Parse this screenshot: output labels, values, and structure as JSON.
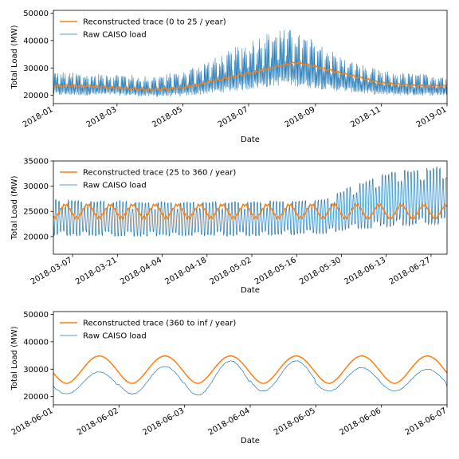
{
  "chart_data": [
    {
      "type": "line",
      "xlabel": "Date",
      "ylabel": "Total Load (MW)",
      "xlim": [
        "2018-01-01",
        "2019-01-01"
      ],
      "ylim": [
        17000,
        51000
      ],
      "yticks": [
        20000,
        30000,
        40000,
        50000
      ],
      "xticks": [
        "2018-01",
        "2018-03",
        "2018-05",
        "2018-07",
        "2018-09",
        "2018-11",
        "2019-01"
      ],
      "legend_position": "upper-left",
      "series": [
        {
          "name": "Reconstructed trace (0 to 25 / year)",
          "color": "#ff7f0e",
          "points": [
            [
              "2018-01-01",
              23500
            ],
            [
              "2018-02-01",
              23500
            ],
            [
              "2018-03-01",
              22800
            ],
            [
              "2018-04-01",
              22000
            ],
            [
              "2018-05-01",
              22800
            ],
            [
              "2018-06-01",
              25500
            ],
            [
              "2018-07-01",
              28000
            ],
            [
              "2018-08-01",
              31000
            ],
            [
              "2018-08-15",
              32000
            ],
            [
              "2018-09-01",
              30500
            ],
            [
              "2018-10-01",
              27500
            ],
            [
              "2018-11-01",
              24500
            ],
            [
              "2018-12-01",
              23500
            ],
            [
              "2019-01-01",
              23300
            ]
          ]
        },
        {
          "name": "Raw CAISO load",
          "color": "#1f77b4",
          "style": "dense daily-oscillating load trace",
          "envelope": [
            [
              "2018-01-01",
              19500,
              29000
            ],
            [
              "2018-02-01",
              19500,
              28000
            ],
            [
              "2018-03-01",
              19500,
              28000
            ],
            [
              "2018-04-01",
              19000,
              27000
            ],
            [
              "2018-05-01",
              19000,
              29000
            ],
            [
              "2018-06-01",
              20000,
              34000
            ],
            [
              "2018-07-01",
              21000,
              40000
            ],
            [
              "2018-08-01",
              22500,
              45500
            ],
            [
              "2018-09-01",
              21500,
              40000
            ],
            [
              "2018-10-01",
              20500,
              33000
            ],
            [
              "2018-11-01",
              19500,
              29000
            ],
            [
              "2018-12-01",
              19500,
              28000
            ],
            [
              "2019-01-01",
              19500,
              27500
            ]
          ]
        }
      ]
    },
    {
      "type": "line",
      "xlabel": "Date",
      "ylabel": "Total Load (MW)",
      "xlim": [
        "2018-03-01",
        "2018-07-02"
      ],
      "ylim": [
        16500,
        35000
      ],
      "yticks": [
        20000,
        25000,
        30000,
        35000
      ],
      "xticks": [
        "2018-03-07",
        "2018-03-21",
        "2018-04-04",
        "2018-04-18",
        "2018-05-02",
        "2018-05-16",
        "2018-05-30",
        "2018-06-13",
        "2018-06-27"
      ],
      "legend_position": "upper-left",
      "series": [
        {
          "name": "Reconstructed trace (25 to 360 / year)",
          "color": "#ff7f0e",
          "style": "weekly oscillation",
          "mean": 25000,
          "amplitude": 1300,
          "period_days": 7
        },
        {
          "name": "Raw CAISO load",
          "color": "#1f77b4",
          "style": "daily oscillation",
          "envelope": [
            [
              "2018-03-01",
              19500,
              28000
            ],
            [
              "2018-04-01",
              19500,
              27500
            ],
            [
              "2018-05-01",
              19500,
              27500
            ],
            [
              "2018-05-25",
              20000,
              28000
            ],
            [
              "2018-06-01",
              20500,
              30500
            ],
            [
              "2018-06-15",
              21000,
              34000
            ],
            [
              "2018-07-02",
              21500,
              35000
            ]
          ]
        }
      ]
    },
    {
      "type": "line",
      "xlabel": "Date",
      "ylabel": "Total Load (MW)",
      "xlim": [
        "2018-06-01",
        "2018-06-07"
      ],
      "ylim": [
        17000,
        51000
      ],
      "yticks": [
        20000,
        30000,
        40000,
        50000
      ],
      "xticks": [
        "2018-06-01",
        "2018-06-02",
        "2018-06-03",
        "2018-06-04",
        "2018-06-05",
        "2018-06-06",
        "2018-06-07"
      ],
      "legend_position": "upper-left",
      "series": [
        {
          "name": "Reconstructed trace (360 to inf / year)",
          "color": "#ff7f0e",
          "style": "daily cycle",
          "daily_min": 24800,
          "daily_max": 34800
        },
        {
          "name": "Raw CAISO load",
          "color": "#1f77b4",
          "style": "daily cycle",
          "daily": [
            {
              "day": "2018-06-01",
              "min": 21000,
              "max": 29000
            },
            {
              "day": "2018-06-02",
              "min": 21000,
              "max": 31000
            },
            {
              "day": "2018-06-03",
              "min": 20500,
              "max": 33000
            },
            {
              "day": "2018-06-04",
              "min": 22000,
              "max": 33000
            },
            {
              "day": "2018-06-05",
              "min": 22000,
              "max": 30500
            },
            {
              "day": "2018-06-06",
              "min": 22000,
              "max": 30000
            }
          ]
        }
      ]
    }
  ]
}
